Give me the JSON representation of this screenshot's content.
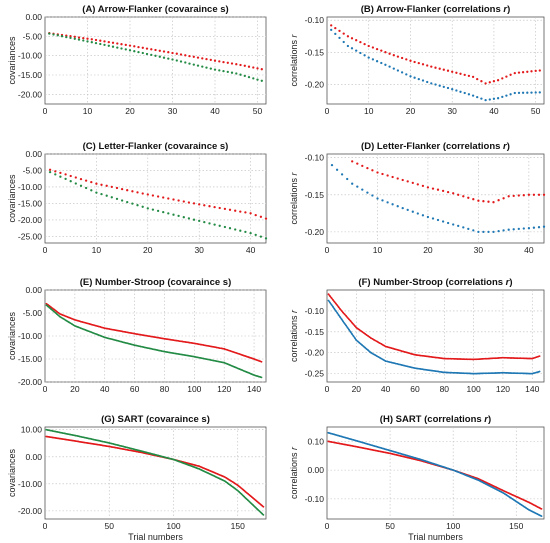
{
  "colors": {
    "red": "#e31a1c",
    "green": "#238b45",
    "blue": "#1f78b4"
  },
  "chart_data": [
    {
      "id": "A",
      "type": "scatter",
      "title": "(A) Arrow-Flanker (covaraince s)",
      "xlabel": "",
      "ylabel": "covariances",
      "xlim": [
        0,
        52
      ],
      "ylim": [
        -22.5,
        0
      ],
      "xticks": [
        0,
        10,
        20,
        30,
        40,
        50
      ],
      "yticks": [
        0,
        -5,
        -10,
        -15,
        -20
      ],
      "ytick_labels": [
        "0.00",
        "-5.00",
        "-10.00",
        "-15.00",
        "-20.00"
      ],
      "grid": true,
      "series": [
        {
          "color": "red",
          "style": "points",
          "n": 51,
          "x_start": 1,
          "x_end": 51,
          "anchors": [
            [
              1,
              -4.2
            ],
            [
              10,
              -5.6
            ],
            [
              20,
              -7.4
            ],
            [
              30,
              -9.3
            ],
            [
              40,
              -11.3
            ],
            [
              45,
              -12.2
            ],
            [
              51,
              -13.5
            ]
          ]
        },
        {
          "color": "green",
          "style": "points",
          "n": 51,
          "x_start": 1,
          "x_end": 51,
          "anchors": [
            [
              1,
              -4.3
            ],
            [
              10,
              -6.3
            ],
            [
              20,
              -8.6
            ],
            [
              30,
              -11.0
            ],
            [
              40,
              -13.6
            ],
            [
              45,
              -14.6
            ],
            [
              51,
              -16.5
            ]
          ]
        }
      ]
    },
    {
      "id": "B",
      "type": "scatter",
      "title": "(B) Arrow-Flanker (correlations",
      "title_symbol": "r",
      "xlabel": "",
      "ylabel": "correlations",
      "ylabel_symbol": "r",
      "xlim": [
        0,
        52
      ],
      "ylim": [
        -0.23,
        -0.095
      ],
      "xticks": [
        0,
        10,
        20,
        30,
        40,
        50
      ],
      "yticks": [
        -0.1,
        -0.15,
        -0.2
      ],
      "ytick_labels": [
        "-0.10",
        "-0.15",
        "-0.20"
      ],
      "grid": true,
      "series": [
        {
          "color": "red",
          "style": "points",
          "n": 51,
          "x_start": 1,
          "x_end": 51,
          "anchors": [
            [
              1,
              -0.108
            ],
            [
              5,
              -0.125
            ],
            [
              10,
              -0.14
            ],
            [
              15,
              -0.152
            ],
            [
              20,
              -0.163
            ],
            [
              25,
              -0.172
            ],
            [
              30,
              -0.18
            ],
            [
              35,
              -0.188
            ],
            [
              38,
              -0.198
            ],
            [
              41,
              -0.193
            ],
            [
              45,
              -0.182
            ],
            [
              51,
              -0.178
            ]
          ]
        },
        {
          "color": "blue",
          "style": "points",
          "n": 51,
          "x_start": 1,
          "x_end": 51,
          "anchors": [
            [
              1,
              -0.115
            ],
            [
              5,
              -0.14
            ],
            [
              10,
              -0.158
            ],
            [
              15,
              -0.172
            ],
            [
              20,
              -0.187
            ],
            [
              25,
              -0.198
            ],
            [
              30,
              -0.207
            ],
            [
              35,
              -0.217
            ],
            [
              38,
              -0.224
            ],
            [
              41,
              -0.221
            ],
            [
              45,
              -0.213
            ],
            [
              51,
              -0.212
            ]
          ]
        }
      ]
    },
    {
      "id": "C",
      "type": "scatter",
      "title": "(C) Letter-Flanker (covaraince s)",
      "xlabel": "",
      "ylabel": "covariances",
      "xlim": [
        0,
        43
      ],
      "ylim": [
        -27,
        0
      ],
      "xticks": [
        0,
        10,
        20,
        30,
        40
      ],
      "yticks": [
        0,
        -5,
        -10,
        -15,
        -20,
        -25
      ],
      "ytick_labels": [
        "0.00",
        "-5.00",
        "-10.00",
        "-15.00",
        "-20.00",
        "-25.00"
      ],
      "grid": true,
      "series": [
        {
          "color": "red",
          "style": "points",
          "n": 43,
          "x_start": 1,
          "x_end": 43,
          "anchors": [
            [
              1,
              -4.8
            ],
            [
              10,
              -9.0
            ],
            [
              20,
              -12.3
            ],
            [
              30,
              -15.3
            ],
            [
              40,
              -18.0
            ],
            [
              43,
              -19.6
            ]
          ]
        },
        {
          "color": "green",
          "style": "points",
          "n": 43,
          "x_start": 1,
          "x_end": 43,
          "anchors": [
            [
              1,
              -5.5
            ],
            [
              10,
              -11.7
            ],
            [
              20,
              -16.5
            ],
            [
              30,
              -20.3
            ],
            [
              40,
              -24.0
            ],
            [
              43,
              -25.6
            ]
          ]
        }
      ]
    },
    {
      "id": "D",
      "type": "scatter",
      "title": "(D) Letter-Flanker (correlations",
      "title_symbol": "r",
      "xlabel": "",
      "ylabel": "correlations",
      "ylabel_symbol": "r",
      "xlim": [
        0,
        43
      ],
      "ylim": [
        -0.215,
        -0.095
      ],
      "xticks": [
        0,
        10,
        20,
        30,
        40
      ],
      "yticks": [
        -0.1,
        -0.15,
        -0.2
      ],
      "ytick_labels": [
        "-0.10",
        "-0.15",
        "-0.20"
      ],
      "grid": true,
      "series": [
        {
          "color": "red",
          "style": "points",
          "n": 39,
          "x_start": 5,
          "x_end": 43,
          "anchors": [
            [
              5,
              -0.105
            ],
            [
              10,
              -0.12
            ],
            [
              15,
              -0.13
            ],
            [
              20,
              -0.14
            ],
            [
              25,
              -0.148
            ],
            [
              30,
              -0.158
            ],
            [
              33,
              -0.16
            ],
            [
              36,
              -0.152
            ],
            [
              40,
              -0.15
            ],
            [
              43,
              -0.15
            ]
          ]
        },
        {
          "color": "blue",
          "style": "points",
          "n": 43,
          "x_start": 1,
          "x_end": 43,
          "anchors": [
            [
              1,
              -0.11
            ],
            [
              5,
              -0.135
            ],
            [
              10,
              -0.155
            ],
            [
              15,
              -0.168
            ],
            [
              20,
              -0.18
            ],
            [
              25,
              -0.19
            ],
            [
              30,
              -0.2
            ],
            [
              33,
              -0.2
            ],
            [
              36,
              -0.197
            ],
            [
              40,
              -0.195
            ],
            [
              43,
              -0.193
            ]
          ]
        }
      ]
    },
    {
      "id": "E",
      "type": "line",
      "title": "(E) Number-Stroop (covaraince s)",
      "xlabel": "",
      "ylabel": "covariances",
      "xlim": [
        0,
        148
      ],
      "ylim": [
        -20,
        0
      ],
      "xticks": [
        0,
        20,
        40,
        60,
        80,
        100,
        120,
        140
      ],
      "yticks": [
        0,
        -5,
        -10,
        -15,
        -20
      ],
      "ytick_labels": [
        "0.00",
        "-5.00",
        "-10.00",
        "-15.00",
        "-20.00"
      ],
      "grid": true,
      "series": [
        {
          "color": "red",
          "style": "dotline",
          "n": 145,
          "x_start": 1,
          "x_end": 145,
          "anchors": [
            [
              1,
              -3.0
            ],
            [
              10,
              -5.2
            ],
            [
              20,
              -6.5
            ],
            [
              40,
              -8.3
            ],
            [
              60,
              -9.5
            ],
            [
              80,
              -10.6
            ],
            [
              100,
              -11.6
            ],
            [
              120,
              -12.8
            ],
            [
              140,
              -15.0
            ],
            [
              145,
              -15.6
            ]
          ]
        },
        {
          "color": "green",
          "style": "dotline",
          "n": 145,
          "x_start": 1,
          "x_end": 145,
          "anchors": [
            [
              1,
              -3.3
            ],
            [
              10,
              -5.8
            ],
            [
              20,
              -7.8
            ],
            [
              40,
              -10.3
            ],
            [
              60,
              -12.0
            ],
            [
              80,
              -13.4
            ],
            [
              100,
              -14.5
            ],
            [
              120,
              -15.8
            ],
            [
              140,
              -18.5
            ],
            [
              145,
              -19.0
            ]
          ]
        }
      ]
    },
    {
      "id": "F",
      "type": "line",
      "title": "(F) Number-Stroop (correlations",
      "title_symbol": "r",
      "xlabel": "",
      "ylabel": "correlations",
      "ylabel_symbol": "r",
      "xlim": [
        0,
        148
      ],
      "ylim": [
        -0.27,
        -0.05
      ],
      "xticks": [
        0,
        20,
        40,
        60,
        80,
        100,
        120,
        140
      ],
      "yticks": [
        -0.1,
        -0.15,
        -0.2,
        -0.25
      ],
      "ytick_labels": [
        "-0.10",
        "-0.15",
        "-0.20",
        "-0.25"
      ],
      "grid": true,
      "series": [
        {
          "color": "red",
          "style": "dotline",
          "n": 145,
          "x_start": 1,
          "x_end": 145,
          "anchors": [
            [
              1,
              -0.06
            ],
            [
              10,
              -0.1
            ],
            [
              20,
              -0.14
            ],
            [
              30,
              -0.165
            ],
            [
              40,
              -0.185
            ],
            [
              60,
              -0.205
            ],
            [
              80,
              -0.214
            ],
            [
              100,
              -0.216
            ],
            [
              120,
              -0.212
            ],
            [
              140,
              -0.214
            ],
            [
              145,
              -0.208
            ]
          ]
        },
        {
          "color": "blue",
          "style": "dotline",
          "n": 145,
          "x_start": 1,
          "x_end": 145,
          "anchors": [
            [
              1,
              -0.075
            ],
            [
              10,
              -0.12
            ],
            [
              20,
              -0.17
            ],
            [
              30,
              -0.2
            ],
            [
              40,
              -0.22
            ],
            [
              60,
              -0.237
            ],
            [
              80,
              -0.247
            ],
            [
              100,
              -0.25
            ],
            [
              120,
              -0.248
            ],
            [
              140,
              -0.25
            ],
            [
              145,
              -0.245
            ]
          ]
        }
      ]
    },
    {
      "id": "G",
      "type": "line",
      "title": "(G) SART (covaraince s)",
      "xlabel": "Trial numbers",
      "ylabel": "covariances",
      "xlim": [
        0,
        172
      ],
      "ylim": [
        -23,
        11
      ],
      "xticks": [
        0,
        50,
        100,
        150
      ],
      "yticks": [
        10,
        0,
        -10,
        -20
      ],
      "ytick_labels": [
        "10.00",
        "0.00",
        "-10.00",
        "-20.00"
      ],
      "grid": true,
      "series": [
        {
          "color": "red",
          "style": "dotline",
          "n": 170,
          "x_start": 1,
          "x_end": 170,
          "anchors": [
            [
              1,
              7.5
            ],
            [
              25,
              5.7
            ],
            [
              50,
              3.8
            ],
            [
              75,
              1.6
            ],
            [
              100,
              -1.0
            ],
            [
              120,
              -3.5
            ],
            [
              140,
              -7.5
            ],
            [
              150,
              -10.5
            ],
            [
              160,
              -14.5
            ],
            [
              170,
              -18.5
            ]
          ]
        },
        {
          "color": "green",
          "style": "dotline",
          "n": 170,
          "x_start": 1,
          "x_end": 170,
          "anchors": [
            [
              1,
              10.0
            ],
            [
              25,
              7.7
            ],
            [
              50,
              5.1
            ],
            [
              75,
              2.1
            ],
            [
              100,
              -1.0
            ],
            [
              120,
              -4.5
            ],
            [
              140,
              -9.0
            ],
            [
              150,
              -12.5
            ],
            [
              160,
              -17.0
            ],
            [
              170,
              -21.5
            ]
          ]
        }
      ]
    },
    {
      "id": "H",
      "type": "line",
      "title": "(H) SART (correlations",
      "title_symbol": "r",
      "xlabel": "Trial numbers",
      "ylabel": "correlations",
      "ylabel_symbol": "r",
      "xlim": [
        0,
        172
      ],
      "ylim": [
        -0.17,
        0.15
      ],
      "xticks": [
        0,
        50,
        100,
        150
      ],
      "yticks": [
        0.1,
        0,
        -0.1
      ],
      "ytick_labels": [
        "0.10",
        "0.00",
        "-0.10"
      ],
      "grid": true,
      "series": [
        {
          "color": "red",
          "style": "dotline",
          "n": 170,
          "x_start": 1,
          "x_end": 170,
          "anchors": [
            [
              1,
              0.1
            ],
            [
              25,
              0.08
            ],
            [
              50,
              0.058
            ],
            [
              75,
              0.032
            ],
            [
              100,
              0.0
            ],
            [
              120,
              -0.03
            ],
            [
              140,
              -0.072
            ],
            [
              160,
              -0.112
            ],
            [
              170,
              -0.135
            ]
          ]
        },
        {
          "color": "blue",
          "style": "dotline",
          "n": 170,
          "x_start": 1,
          "x_end": 170,
          "anchors": [
            [
              1,
              0.13
            ],
            [
              25,
              0.1
            ],
            [
              50,
              0.068
            ],
            [
              75,
              0.036
            ],
            [
              100,
              0.0
            ],
            [
              120,
              -0.035
            ],
            [
              140,
              -0.08
            ],
            [
              160,
              -0.138
            ],
            [
              170,
              -0.16
            ]
          ]
        }
      ]
    }
  ]
}
